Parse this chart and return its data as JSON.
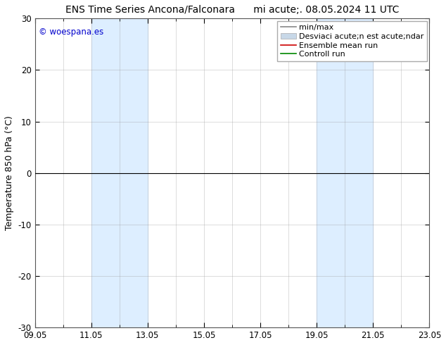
{
  "title": "ENS Time Series Ancona/Falconara      mi acute;. 08.05.2024 11 UTC",
  "ylabel": "Temperature 850 hPa (°C)",
  "xtick_labels": [
    "09.05",
    "11.05",
    "13.05",
    "15.05",
    "17.05",
    "19.05",
    "21.05",
    "23.05"
  ],
  "xtick_positions": [
    0,
    2,
    4,
    6,
    8,
    10,
    12,
    14
  ],
  "num_days": 14,
  "ylim": [
    -30,
    30
  ],
  "yticks": [
    -30,
    -20,
    -10,
    0,
    10,
    20,
    30
  ],
  "shaded_bands": [
    {
      "x_start": 2,
      "x_end": 4
    },
    {
      "x_start": 10,
      "x_end": 12
    }
  ],
  "shaded_color": "#ddeeff",
  "zero_line_color": "#000000",
  "watermark": "© woespana.es",
  "watermark_color": "#0000cc",
  "legend_labels": [
    "min/max",
    "Desviaci acute;n est acute;ndar",
    "Ensemble mean run",
    "Controll run"
  ],
  "legend_line_colors": [
    "#888888",
    "#c8d8e8",
    "#cc0000",
    "#008800"
  ],
  "bg_color": "#ffffff",
  "plot_bg_color": "#ffffff",
  "grid_color": "#999999",
  "border_color": "#555555",
  "title_fontsize": 10,
  "axis_fontsize": 9,
  "tick_fontsize": 8.5,
  "legend_fontsize": 8
}
